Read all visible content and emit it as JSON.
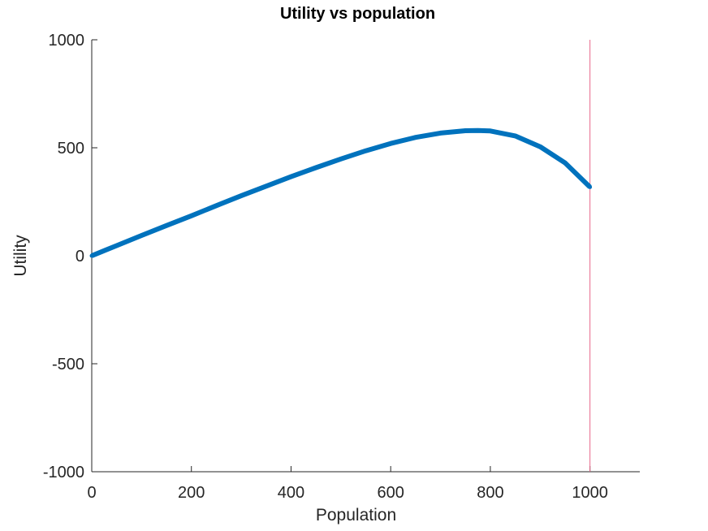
{
  "chart_data": {
    "type": "line",
    "title": "Utility vs population",
    "xlabel": "Population",
    "ylabel": "Utility",
    "xlim": [
      0,
      1100
    ],
    "ylim": [
      -1000,
      1000
    ],
    "xticks": [
      0,
      200,
      400,
      600,
      800,
      1000
    ],
    "yticks": [
      -1000,
      -500,
      0,
      500,
      1000
    ],
    "xtick_labels": [
      "0",
      "200",
      "400",
      "600",
      "800",
      "1000"
    ],
    "ytick_labels": [
      "-1000",
      "-500",
      "0",
      "500",
      "1000"
    ],
    "grid": false,
    "series": [
      {
        "color": "#0072bd",
        "x": [
          0,
          50,
          100,
          150,
          200,
          250,
          300,
          350,
          400,
          450,
          500,
          550,
          600,
          650,
          700,
          750,
          775,
          800,
          850,
          900,
          950,
          1000
        ],
        "y": [
          0,
          47,
          94,
          140,
          185,
          232,
          278,
          322,
          366,
          408,
          448,
          486,
          520,
          548,
          568,
          579,
          580,
          578,
          555,
          505,
          430,
          318
        ]
      }
    ],
    "reference_line": {
      "x": 1000,
      "color": "#e8688a"
    }
  }
}
